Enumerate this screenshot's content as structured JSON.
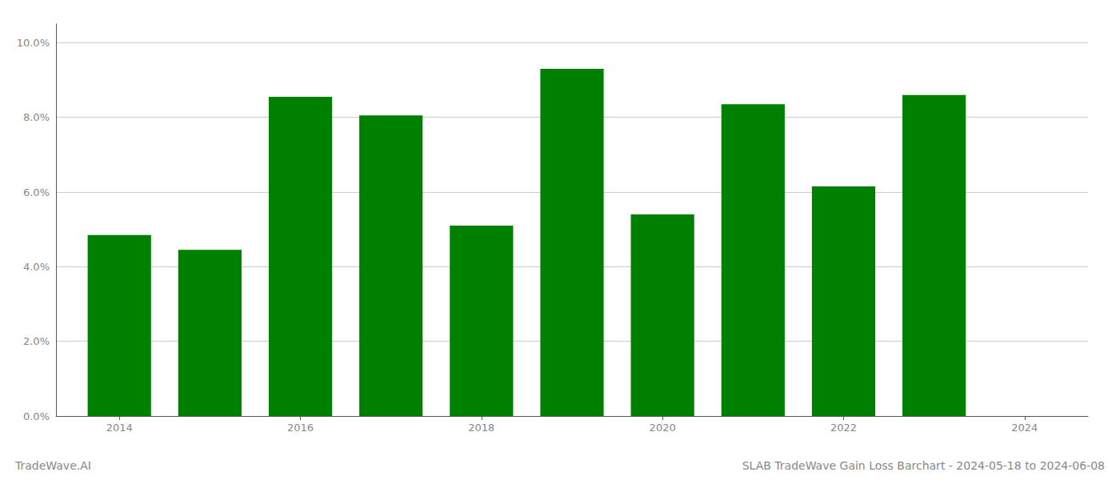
{
  "chart_data": {
    "type": "bar",
    "title": "SLAB TradeWave Gain Loss Barchart - 2024-05-18 to 2024-06-08",
    "annotations": [
      "TradeWave.AI"
    ],
    "x": [
      2014,
      2015,
      2016,
      2017,
      2018,
      2019,
      2020,
      2021,
      2022,
      2023
    ],
    "values": [
      0.0485,
      0.0445,
      0.0855,
      0.0805,
      0.051,
      0.093,
      0.054,
      0.0835,
      0.0615,
      0.086
    ],
    "color": "#008000",
    "xlim": [
      2013.3,
      2024.7
    ],
    "xticks": [
      2014,
      2016,
      2018,
      2020,
      2022,
      2024
    ],
    "ylim": [
      0.0,
      0.105
    ],
    "yticks": [
      {
        "value": 0.0,
        "label": "0.0%"
      },
      {
        "value": 0.02,
        "label": "2.0%"
      },
      {
        "value": 0.04,
        "label": "4.0%"
      },
      {
        "value": 0.06,
        "label": "6.0%"
      },
      {
        "value": 0.08,
        "label": "8.0%"
      },
      {
        "value": 0.1,
        "label": "10.0%"
      }
    ],
    "grid": true
  }
}
